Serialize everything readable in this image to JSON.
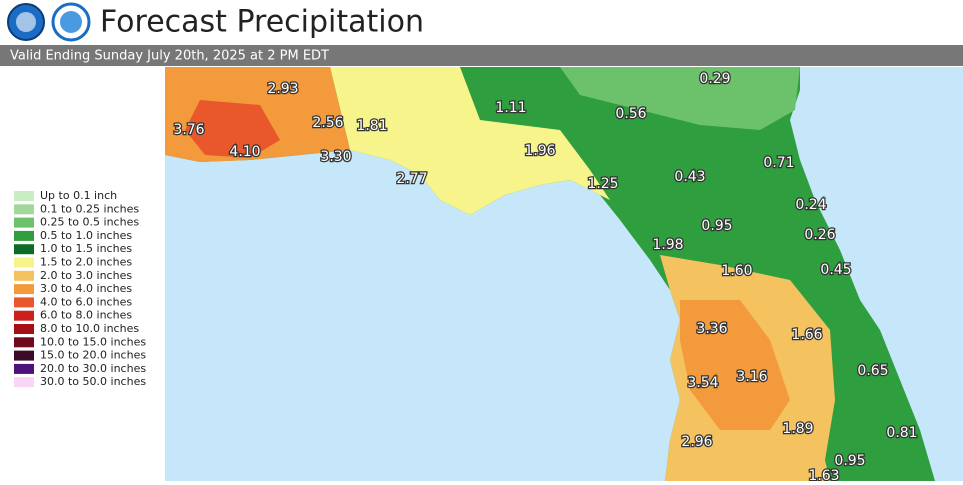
{
  "header": {
    "title": "Forecast Precipitation",
    "subtitle": "Valid Ending Sunday July 20th, 2025 at 2 PM EDT"
  },
  "legend": [
    {
      "label": "Up to 0.1 inch",
      "color": "#c9ecc4"
    },
    {
      "label": "0.1 to 0.25 inches",
      "color": "#9fd89a"
    },
    {
      "label": "0.25 to 0.5 inches",
      "color": "#6cc26a"
    },
    {
      "label": "0.5 to 1.0 inches",
      "color": "#2e9e3e"
    },
    {
      "label": "1.0 to 1.5 inches",
      "color": "#0e6b26"
    },
    {
      "label": "1.5 to 2.0 inches",
      "color": "#f6f48a"
    },
    {
      "label": "2.0 to 3.0 inches",
      "color": "#f5c260"
    },
    {
      "label": "3.0 to 4.0 inches",
      "color": "#f39a3c"
    },
    {
      "label": "4.0 to 6.0 inches",
      "color": "#e8582c"
    },
    {
      "label": "6.0 to 8.0 inches",
      "color": "#cc1f1f"
    },
    {
      "label": "8.0 to 10.0 inches",
      "color": "#a50e14"
    },
    {
      "label": "10.0 to 15.0 inches",
      "color": "#6e0a1c"
    },
    {
      "label": "15.0 to 20.0 inches",
      "color": "#3b0c28"
    },
    {
      "label": "20.0 to 30.0 inches",
      "color": "#4d117a"
    },
    {
      "label": "30.0 to 50.0 inches",
      "color": "#f9d6f5"
    }
  ],
  "map_labels": [
    "2.93",
    "3.76",
    "4.10",
    "2.56",
    "1.81",
    "3.30",
    "2.77",
    "1.11",
    "0.56",
    "0.29",
    "1.96",
    "1.25",
    "0.43",
    "0.71",
    "0.24",
    "0.95",
    "0.26",
    "1.98",
    "1.60",
    "0.45",
    "3.36",
    "1.66",
    "3.54",
    "3.16",
    "0.65",
    "1.89",
    "2.96",
    "0.81",
    "0.95",
    "1.63"
  ]
}
